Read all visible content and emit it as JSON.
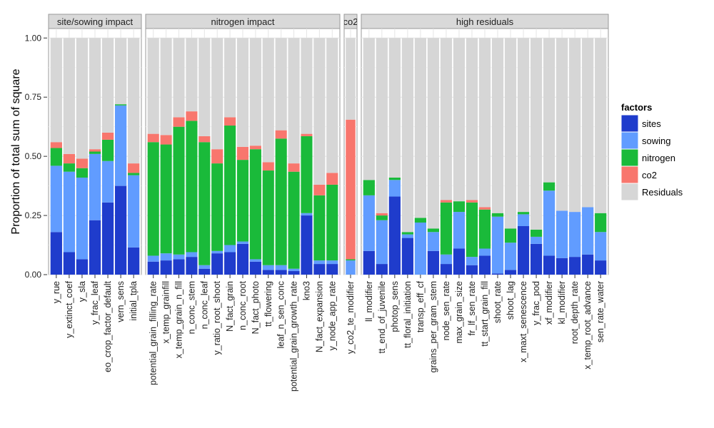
{
  "chart_data": {
    "type": "bar",
    "stacked": true,
    "ylabel": "Proportion of total sum of square",
    "xlabel": "",
    "ylim": [
      0,
      1.04
    ],
    "yticks": [
      0,
      0.25,
      0.5,
      0.75,
      1.0
    ],
    "ytick_labels": [
      "0.00",
      "0.25",
      "0.50",
      "0.75",
      "1.00"
    ],
    "grid": true,
    "legend_position": "right",
    "legend": {
      "title": "factors",
      "entries": [
        {
          "name": "sites",
          "color": "#1F3CCC"
        },
        {
          "name": "sowing",
          "color": "#619CFF"
        },
        {
          "name": "nitrogen",
          "color": "#1ABA3A"
        },
        {
          "name": "co2",
          "color": "#F8766D"
        },
        {
          "name": "Residuals",
          "color": "#D6D6D6"
        }
      ]
    },
    "facets": [
      {
        "title": "site/sowing impact",
        "categories": [
          "y_rue",
          "y_extinct_coef",
          "y_sla",
          "y_frac_leaf",
          "eo_crop_factor_default",
          "vern_sens",
          "initial_tpla"
        ],
        "series": [
          {
            "name": "sites",
            "values": [
              0.18,
              0.095,
              0.065,
              0.23,
              0.305,
              0.375,
              0.115
            ]
          },
          {
            "name": "sowing",
            "values": [
              0.28,
              0.34,
              0.345,
              0.28,
              0.175,
              0.34,
              0.305
            ]
          },
          {
            "name": "nitrogen",
            "values": [
              0.075,
              0.035,
              0.04,
              0.01,
              0.09,
              0.005,
              0.01
            ]
          },
          {
            "name": "co2",
            "values": [
              0.025,
              0.04,
              0.04,
              0.01,
              0.03,
              0.0,
              0.04
            ]
          },
          {
            "name": "Residuals",
            "values": [
              0.44,
              0.49,
              0.51,
              0.47,
              0.4,
              0.28,
              0.53
            ]
          }
        ]
      },
      {
        "title": "nitrogen impact",
        "categories": [
          "potential_grain_filling_rate",
          "x_temp_grainfill",
          "x_temp_grain_n_fill",
          "n_conc_stem",
          "n_conc_leaf",
          "y_ratio_root_shoot",
          "N_fact_grain",
          "n_conc_root",
          "N_fact_photo",
          "tt_flowering",
          "leaf_n_sen_conc",
          "potential_grain_growth_rate",
          "kno3",
          "N_fact_expansion",
          "y_node_app_rate"
        ],
        "series": [
          {
            "name": "sites",
            "values": [
              0.055,
              0.06,
              0.065,
              0.075,
              0.025,
              0.09,
              0.095,
              0.13,
              0.055,
              0.02,
              0.02,
              0.015,
              0.25,
              0.045,
              0.045
            ]
          },
          {
            "name": "sowing",
            "values": [
              0.025,
              0.03,
              0.02,
              0.02,
              0.015,
              0.01,
              0.03,
              0.01,
              0.01,
              0.02,
              0.02,
              0.01,
              0.01,
              0.015,
              0.015
            ]
          },
          {
            "name": "nitrogen",
            "values": [
              0.48,
              0.46,
              0.54,
              0.555,
              0.52,
              0.37,
              0.505,
              0.345,
              0.465,
              0.4,
              0.535,
              0.41,
              0.325,
              0.275,
              0.32
            ]
          },
          {
            "name": "co2",
            "values": [
              0.035,
              0.04,
              0.04,
              0.04,
              0.025,
              0.06,
              0.035,
              0.055,
              0.015,
              0.035,
              0.035,
              0.035,
              0.01,
              0.045,
              0.05
            ]
          },
          {
            "name": "Residuals",
            "values": [
              0.405,
              0.41,
              0.335,
              0.31,
              0.415,
              0.47,
              0.335,
              0.46,
              0.455,
              0.525,
              0.39,
              0.53,
              0.405,
              0.62,
              0.57
            ]
          }
        ]
      },
      {
        "title": "co2",
        "categories": [
          "y_co2_te_modifier"
        ],
        "series": [
          {
            "name": "sites",
            "values": [
              0.0
            ]
          },
          {
            "name": "sowing",
            "values": [
              0.06
            ]
          },
          {
            "name": "nitrogen",
            "values": [
              0.005
            ]
          },
          {
            "name": "co2",
            "values": [
              0.59
            ]
          },
          {
            "name": "Residuals",
            "values": [
              0.345
            ]
          }
        ]
      },
      {
        "title": "high residuals",
        "categories": [
          "ll_modifier",
          "tt_end_of_juvenile",
          "photop_sens",
          "tt_floral_initiation",
          "transp_eff_cf",
          "grains_per_gram_stem",
          "node_sen_rate",
          "max_grain_size",
          "fr_lf_sen_rate",
          "tt_start_grain_fill",
          "shoot_rate",
          "shoot_lag",
          "x_maxt_senescence",
          "y_frac_pod",
          "xf_modifier",
          "kl_modifier",
          "root_depth_rate",
          "x_temp_root_advance",
          "sen_rate_water"
        ],
        "series": [
          {
            "name": "sites",
            "values": [
              0.1,
              0.045,
              0.33,
              0.155,
              0.0,
              0.1,
              0.045,
              0.11,
              0.04,
              0.08,
              0.005,
              0.02,
              0.205,
              0.13,
              0.08,
              0.07,
              0.075,
              0.085,
              0.06
            ]
          },
          {
            "name": "sowing",
            "values": [
              0.235,
              0.185,
              0.07,
              0.015,
              0.22,
              0.08,
              0.04,
              0.155,
              0.035,
              0.03,
              0.24,
              0.115,
              0.05,
              0.03,
              0.275,
              0.2,
              0.19,
              0.2,
              0.12
            ]
          },
          {
            "name": "nitrogen",
            "values": [
              0.065,
              0.02,
              0.01,
              0.01,
              0.02,
              0.015,
              0.22,
              0.045,
              0.23,
              0.165,
              0.015,
              0.06,
              0.01,
              0.03,
              0.035,
              0.0,
              0.0,
              0.0,
              0.08
            ]
          },
          {
            "name": "co2",
            "values": [
              0.0,
              0.01,
              0.0,
              0.0,
              0.0,
              0.0,
              0.01,
              0.0,
              0.01,
              0.01,
              0.0,
              0.0,
              0.0,
              0.0,
              0.0,
              0.0,
              0.0,
              0.0,
              0.0
            ]
          },
          {
            "name": "Residuals",
            "values": [
              0.6,
              0.74,
              0.59,
              0.82,
              0.76,
              0.805,
              0.685,
              0.69,
              0.685,
              0.715,
              0.74,
              0.805,
              0.735,
              0.81,
              0.61,
              0.73,
              0.735,
              0.715,
              0.74
            ]
          }
        ]
      }
    ]
  }
}
